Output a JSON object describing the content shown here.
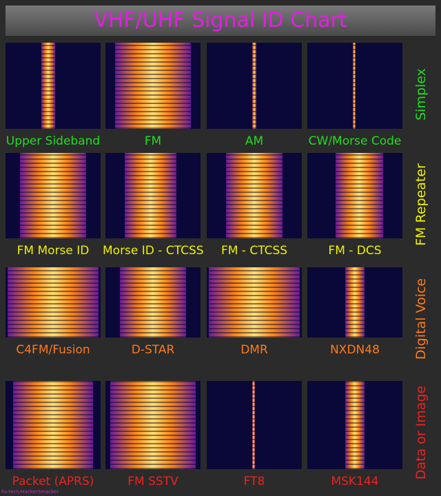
{
  "header": {
    "title": "VHF/UHF Signal ID Chart"
  },
  "rows": [
    {
      "group": "Simplex",
      "cells": [
        "Upper Sideband",
        "FM",
        "AM",
        "CW/Morse Code"
      ]
    },
    {
      "group": "FM Repeater",
      "cells": [
        "FM Morse ID",
        "Morse ID - CTCSS",
        "FM - CTCSS",
        "FM - DCS"
      ]
    },
    {
      "group": "Digital Voice",
      "cells": [
        "C4FM/Fusion",
        "D-STAR",
        "DMR",
        "NXDN48"
      ]
    },
    {
      "group": "Data or Image",
      "cells": [
        "Packet (APRS)",
        "FM SSTV",
        "FT8",
        "MSK144"
      ]
    }
  ],
  "credit": "hs-tech/HackerSmacker"
}
